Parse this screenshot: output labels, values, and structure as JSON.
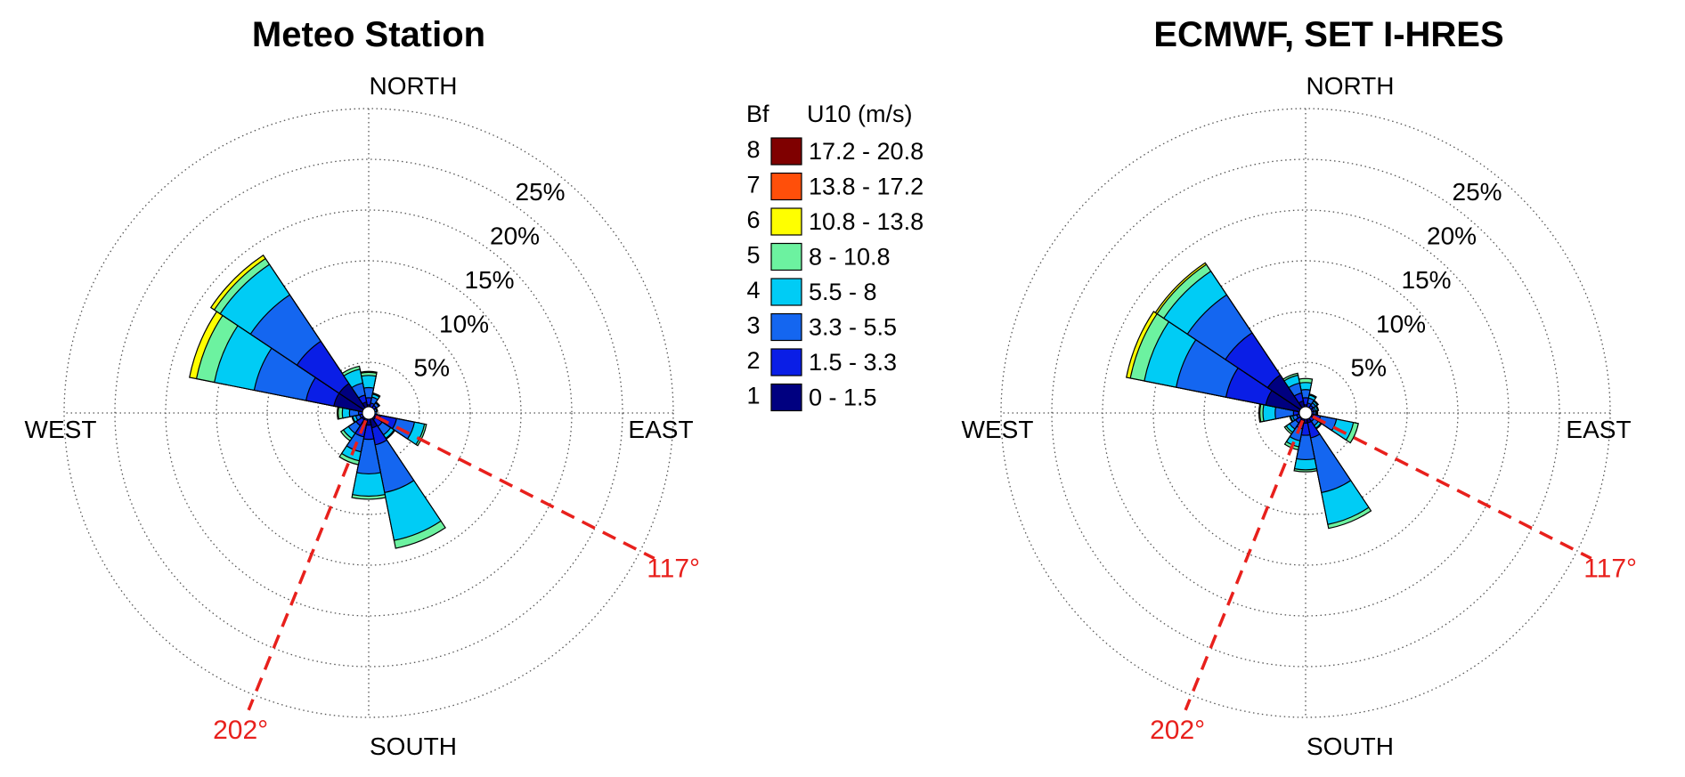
{
  "chart_data": [
    {
      "type": "windrose",
      "title": "Meteo Station",
      "direction_labels": {
        "north": "NORTH",
        "east": "EAST",
        "south": "SOUTH",
        "west": "WEST"
      },
      "radial_ticks": [
        {
          "value": 5,
          "label": "5%"
        },
        {
          "value": 10,
          "label": "10%"
        },
        {
          "value": 15,
          "label": "15%"
        },
        {
          "value": 20,
          "label": "20%"
        },
        {
          "value": 25,
          "label": "25%"
        }
      ],
      "radial_grid_max": 30,
      "reference_lines": [
        {
          "angle": 117,
          "label": "117°"
        },
        {
          "angle": 202,
          "label": "202°"
        }
      ],
      "sector_width_deg": 22.5,
      "units": "percent frequency, cumulative by Beaufort class 1-8",
      "sectors": [
        {
          "dir": 0,
          "values": [
            0.8,
            1.5,
            2.5,
            3.7,
            4.0,
            4.1,
            4.1,
            4.1
          ]
        },
        {
          "dir": 22.5,
          "values": [
            0.6,
            1.0,
            1.6,
            1.9,
            2.0,
            2.0,
            2.0,
            2.0
          ]
        },
        {
          "dir": 45,
          "values": [
            0.5,
            0.9,
            1.2,
            1.3,
            1.3,
            1.3,
            1.3,
            1.3
          ]
        },
        {
          "dir": 67.5,
          "values": [
            0.4,
            0.6,
            0.8,
            0.9,
            0.9,
            0.9,
            0.9,
            0.9
          ]
        },
        {
          "dir": 90,
          "values": [
            0.4,
            0.6,
            0.8,
            0.8,
            0.8,
            0.8,
            0.8,
            0.8
          ]
        },
        {
          "dir": 112.5,
          "values": [
            1.2,
            2.8,
            4.6,
            5.6,
            5.8,
            5.8,
            5.8,
            5.8
          ]
        },
        {
          "dir": 135,
          "values": [
            0.8,
            1.6,
            2.6,
            3.0,
            3.1,
            3.1,
            3.1,
            3.1
          ]
        },
        {
          "dir": 157.5,
          "values": [
            1.5,
            3.2,
            8.0,
            12.8,
            13.6,
            13.6,
            13.6,
            13.6
          ]
        },
        {
          "dir": 180,
          "values": [
            1.2,
            2.6,
            6.0,
            8.2,
            8.5,
            8.5,
            8.5,
            8.5
          ]
        },
        {
          "dir": 202.5,
          "values": [
            1.2,
            2.4,
            3.9,
            4.8,
            5.2,
            5.2,
            5.2,
            5.2
          ]
        },
        {
          "dir": 225,
          "values": [
            0.8,
            1.5,
            2.4,
            3.0,
            3.3,
            3.3,
            3.3,
            3.3
          ]
        },
        {
          "dir": 247.5,
          "values": [
            0.5,
            0.9,
            1.3,
            1.6,
            1.7,
            1.7,
            1.7,
            1.7
          ]
        },
        {
          "dir": 270,
          "values": [
            0.5,
            1.0,
            1.9,
            2.6,
            3.0,
            3.1,
            3.1,
            3.1
          ]
        },
        {
          "dir": 292.5,
          "values": [
            3.5,
            6.3,
            11.5,
            15.5,
            17.3,
            18.0,
            18.0,
            18.0
          ]
        },
        {
          "dir": 315,
          "values": [
            3.5,
            8.5,
            14.0,
            17.6,
            18.3,
            18.7,
            18.7,
            18.7
          ]
        },
        {
          "dir": 337.5,
          "values": [
            1.1,
            1.8,
            3.0,
            4.4,
            4.7,
            4.7,
            4.7,
            4.7
          ]
        }
      ]
    },
    {
      "type": "windrose",
      "title": "ECMWF, SET I-HRES",
      "direction_labels": {
        "north": "NORTH",
        "east": "EAST",
        "south": "SOUTH",
        "west": "WEST"
      },
      "radial_ticks": [
        {
          "value": 5,
          "label": "5%"
        },
        {
          "value": 10,
          "label": "10%"
        },
        {
          "value": 15,
          "label": "15%"
        },
        {
          "value": 20,
          "label": "20%"
        },
        {
          "value": 25,
          "label": "25%"
        }
      ],
      "radial_grid_max": 30,
      "reference_lines": [
        {
          "angle": 117,
          "label": "117°"
        },
        {
          "angle": 202,
          "label": "202°"
        }
      ],
      "sector_width_deg": 22.5,
      "units": "percent frequency, cumulative by Beaufort class 1-8",
      "sectors": [
        {
          "dir": 0,
          "values": [
            0.8,
            1.5,
            2.3,
            3.0,
            3.4,
            3.4,
            3.4,
            3.4
          ]
        },
        {
          "dir": 22.5,
          "values": [
            0.6,
            1.0,
            1.5,
            1.8,
            1.9,
            1.9,
            1.9,
            1.9
          ]
        },
        {
          "dir": 45,
          "values": [
            0.5,
            0.9,
            1.2,
            1.4,
            1.5,
            1.5,
            1.5,
            1.5
          ]
        },
        {
          "dir": 67.5,
          "values": [
            0.5,
            0.8,
            1.0,
            1.2,
            1.3,
            1.3,
            1.3,
            1.3
          ]
        },
        {
          "dir": 90,
          "values": [
            0.5,
            0.8,
            1.0,
            1.1,
            1.2,
            1.2,
            1.2,
            1.2
          ]
        },
        {
          "dir": 112.5,
          "values": [
            0.8,
            1.5,
            3.1,
            4.8,
            5.3,
            5.3,
            5.3,
            5.3
          ]
        },
        {
          "dir": 135,
          "values": [
            0.6,
            1.0,
            1.5,
            1.8,
            1.9,
            1.9,
            1.9,
            1.9
          ]
        },
        {
          "dir": 157.5,
          "values": [
            1.0,
            2.5,
            8.0,
            11.2,
            11.6,
            11.6,
            11.6,
            11.6
          ]
        },
        {
          "dir": 180,
          "values": [
            1.0,
            2.2,
            4.6,
            5.6,
            5.8,
            5.8,
            5.8,
            5.8
          ]
        },
        {
          "dir": 202.5,
          "values": [
            0.8,
            1.6,
            2.8,
            3.4,
            3.7,
            3.7,
            3.7,
            3.7
          ]
        },
        {
          "dir": 225,
          "values": [
            0.7,
            1.2,
            1.9,
            2.3,
            2.5,
            2.5,
            2.5,
            2.5
          ]
        },
        {
          "dir": 247.5,
          "values": [
            0.5,
            0.9,
            1.3,
            1.5,
            1.6,
            1.6,
            1.6,
            1.6
          ]
        },
        {
          "dir": 270,
          "values": [
            0.7,
            1.2,
            3.0,
            4.2,
            4.5,
            4.6,
            4.6,
            4.6
          ]
        },
        {
          "dir": 292.5,
          "values": [
            4.0,
            8.0,
            13.0,
            16.2,
            17.6,
            18.0,
            18.0,
            18.0
          ]
        },
        {
          "dir": 315,
          "values": [
            4.5,
            9.5,
            14.0,
            16.8,
            17.6,
            17.8,
            17.8,
            17.8
          ]
        },
        {
          "dir": 337.5,
          "values": [
            1.2,
            2.0,
            3.0,
            3.8,
            4.0,
            4.0,
            4.0,
            4.0
          ]
        }
      ]
    }
  ],
  "legend": {
    "header_bf": "Bf",
    "header_u10": "U10 (m/s)",
    "entries": [
      {
        "bf": "8",
        "range": "17.2 - 20.8",
        "color": "#7f0000"
      },
      {
        "bf": "7",
        "range": "13.8 - 17.2",
        "color": "#ff4f0a"
      },
      {
        "bf": "6",
        "range": "10.8 - 13.8",
        "color": "#ffff00"
      },
      {
        "bf": "5",
        "range": "8 - 10.8",
        "color": "#6cf2a0"
      },
      {
        "bf": "4",
        "range": "5.5 - 8",
        "color": "#00ccf5"
      },
      {
        "bf": "3",
        "range": "3.3 - 5.5",
        "color": "#1466f0"
      },
      {
        "bf": "2",
        "range": "1.5 - 3.3",
        "color": "#0a1ee6"
      },
      {
        "bf": "1",
        "range": "0 - 1.5",
        "color": "#000080"
      }
    ]
  }
}
